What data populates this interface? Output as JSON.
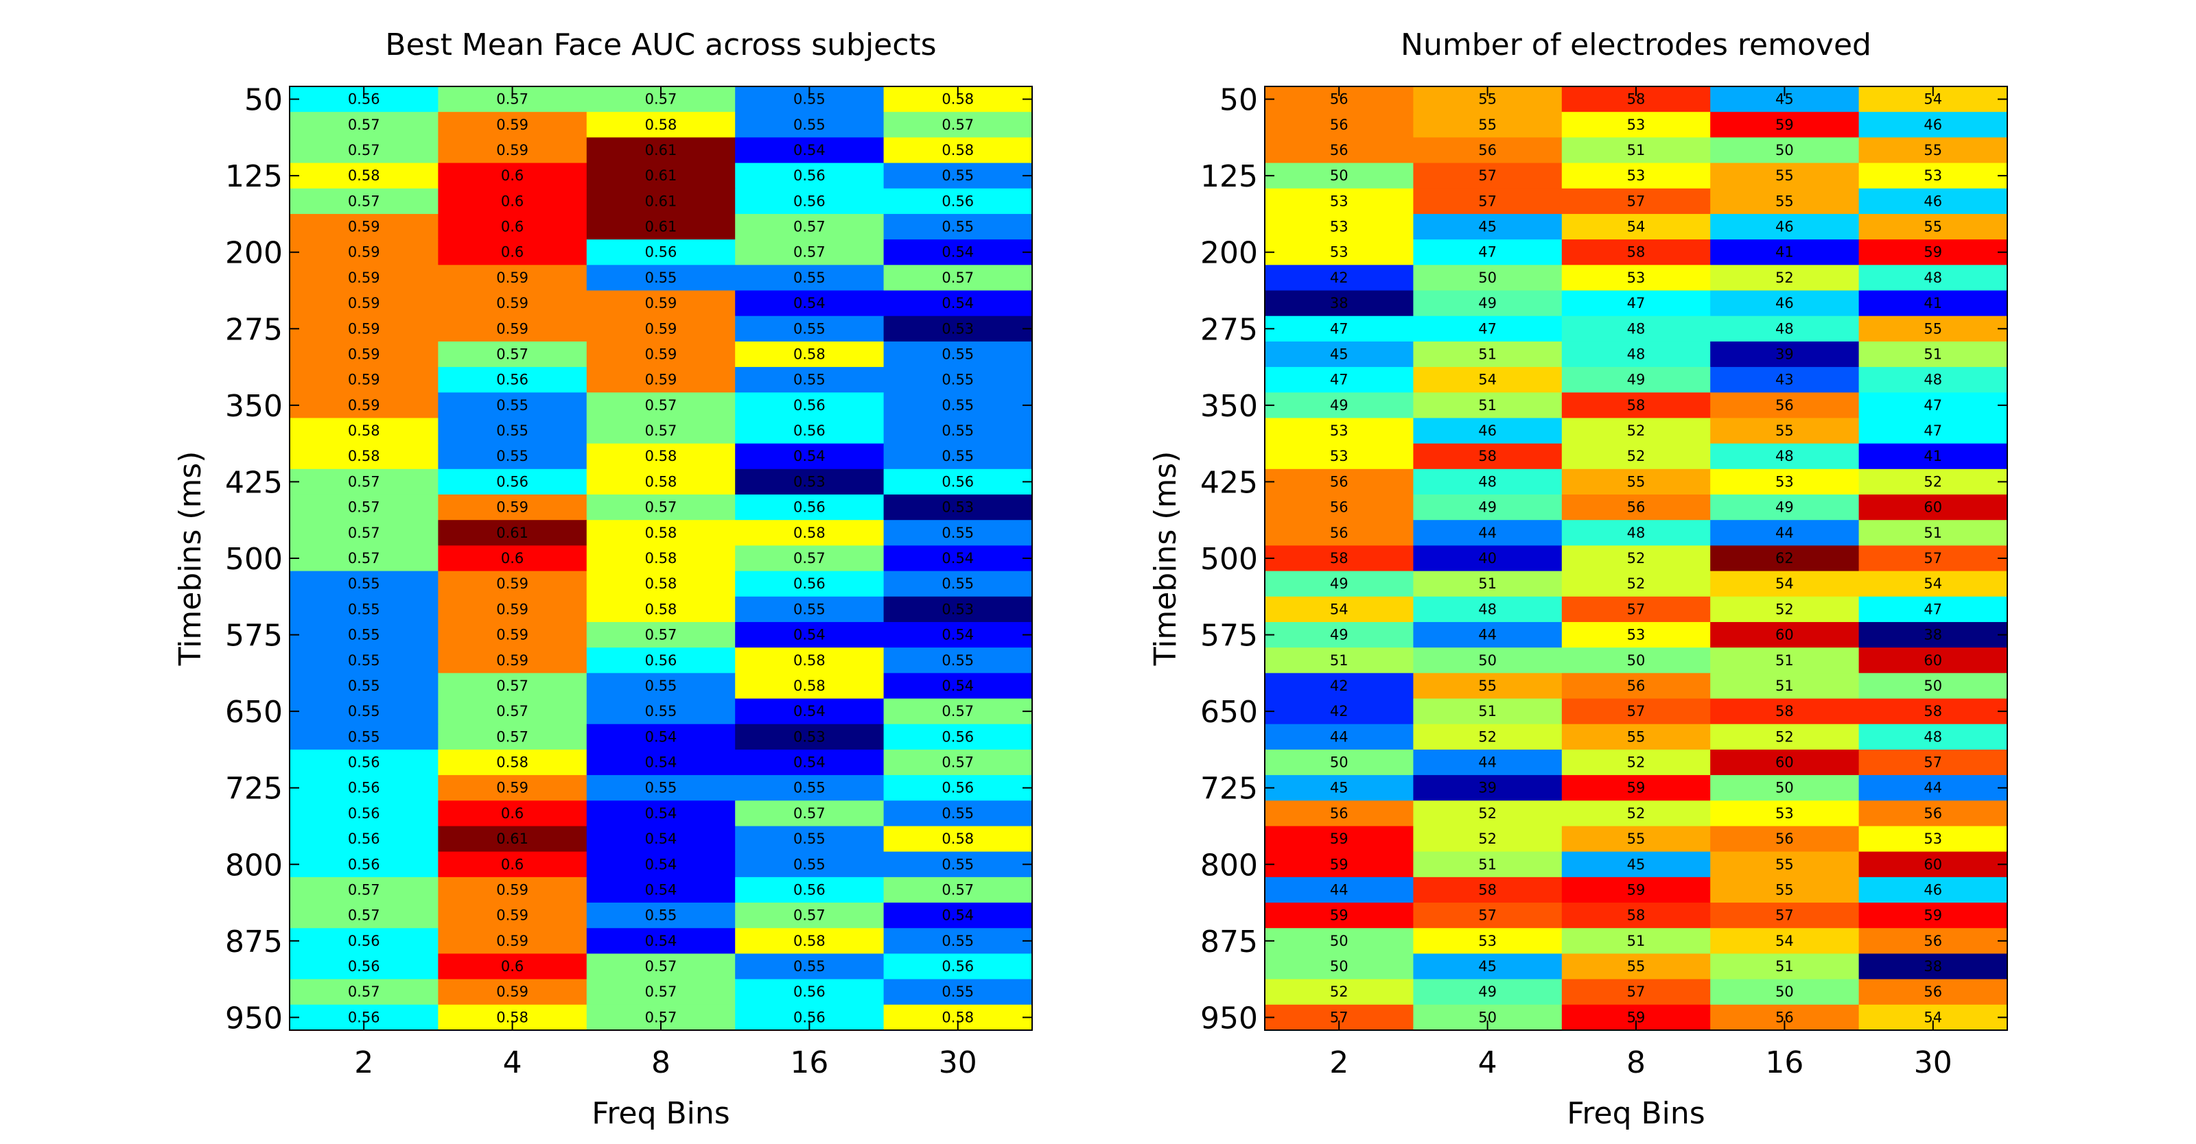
{
  "chart_data": [
    {
      "type": "heatmap",
      "title": "Best Mean Face AUC across subjects",
      "xlabel": "Freq Bins",
      "ylabel": "Timebins (ms)",
      "x_categories": [
        "2",
        "4",
        "8",
        "16",
        "30"
      ],
      "y_tick_labels": [
        "50",
        "125",
        "200",
        "275",
        "350",
        "425",
        "500",
        "575",
        "650",
        "725",
        "800",
        "875",
        "950"
      ],
      "colormap": "jet",
      "color_range": [
        0.53,
        0.61
      ],
      "values": [
        [
          0.56,
          0.57,
          0.57,
          0.55,
          0.58
        ],
        [
          0.57,
          0.59,
          0.58,
          0.55,
          0.57
        ],
        [
          0.57,
          0.59,
          0.61,
          0.54,
          0.58
        ],
        [
          0.58,
          0.6,
          0.61,
          0.56,
          0.55
        ],
        [
          0.57,
          0.6,
          0.61,
          0.56,
          0.56
        ],
        [
          0.59,
          0.6,
          0.61,
          0.57,
          0.55
        ],
        [
          0.59,
          0.6,
          0.56,
          0.57,
          0.54
        ],
        [
          0.59,
          0.59,
          0.55,
          0.55,
          0.57
        ],
        [
          0.59,
          0.59,
          0.59,
          0.54,
          0.54
        ],
        [
          0.59,
          0.59,
          0.59,
          0.55,
          0.53
        ],
        [
          0.59,
          0.57,
          0.59,
          0.58,
          0.55
        ],
        [
          0.59,
          0.56,
          0.59,
          0.55,
          0.55
        ],
        [
          0.59,
          0.55,
          0.57,
          0.56,
          0.55
        ],
        [
          0.58,
          0.55,
          0.57,
          0.56,
          0.55
        ],
        [
          0.58,
          0.55,
          0.58,
          0.54,
          0.55
        ],
        [
          0.57,
          0.56,
          0.58,
          0.53,
          0.56
        ],
        [
          0.57,
          0.59,
          0.57,
          0.56,
          0.53
        ],
        [
          0.57,
          0.61,
          0.58,
          0.58,
          0.55
        ],
        [
          0.57,
          0.6,
          0.58,
          0.57,
          0.54
        ],
        [
          0.55,
          0.59,
          0.58,
          0.56,
          0.55
        ],
        [
          0.55,
          0.59,
          0.58,
          0.55,
          0.53
        ],
        [
          0.55,
          0.59,
          0.57,
          0.54,
          0.54
        ],
        [
          0.55,
          0.59,
          0.56,
          0.58,
          0.55
        ],
        [
          0.55,
          0.57,
          0.55,
          0.58,
          0.54
        ],
        [
          0.55,
          0.57,
          0.55,
          0.54,
          0.57
        ],
        [
          0.55,
          0.57,
          0.54,
          0.53,
          0.56
        ],
        [
          0.56,
          0.58,
          0.54,
          0.54,
          0.57
        ],
        [
          0.56,
          0.59,
          0.55,
          0.55,
          0.56
        ],
        [
          0.56,
          0.6,
          0.54,
          0.57,
          0.55
        ],
        [
          0.56,
          0.61,
          0.54,
          0.55,
          0.58
        ],
        [
          0.56,
          0.6,
          0.54,
          0.55,
          0.55
        ],
        [
          0.57,
          0.59,
          0.54,
          0.56,
          0.57
        ],
        [
          0.57,
          0.59,
          0.55,
          0.57,
          0.54
        ],
        [
          0.56,
          0.59,
          0.54,
          0.58,
          0.55
        ],
        [
          0.56,
          0.6,
          0.57,
          0.55,
          0.56
        ],
        [
          0.57,
          0.59,
          0.57,
          0.56,
          0.55
        ],
        [
          0.56,
          0.58,
          0.57,
          0.56,
          0.58
        ]
      ]
    },
    {
      "type": "heatmap",
      "title": "Number of electrodes removed",
      "xlabel": "Freq Bins",
      "ylabel": "Timebins (ms)",
      "x_categories": [
        "2",
        "4",
        "8",
        "16",
        "30"
      ],
      "y_tick_labels": [
        "50",
        "125",
        "200",
        "275",
        "350",
        "425",
        "500",
        "575",
        "650",
        "725",
        "800",
        "875",
        "950"
      ],
      "colormap": "jet",
      "color_range": [
        38,
        62
      ],
      "values": [
        [
          56,
          55,
          58,
          45,
          54
        ],
        [
          56,
          55,
          53,
          59,
          46
        ],
        [
          56,
          56,
          51,
          50,
          55
        ],
        [
          50,
          57,
          53,
          55,
          53
        ],
        [
          53,
          57,
          57,
          55,
          46
        ],
        [
          53,
          45,
          54,
          46,
          55
        ],
        [
          53,
          47,
          58,
          41,
          59
        ],
        [
          42,
          50,
          53,
          52,
          48
        ],
        [
          38,
          49,
          47,
          46,
          41
        ],
        [
          47,
          47,
          48,
          48,
          55
        ],
        [
          45,
          51,
          48,
          39,
          51
        ],
        [
          47,
          54,
          49,
          43,
          48
        ],
        [
          49,
          51,
          58,
          56,
          47
        ],
        [
          53,
          46,
          52,
          55,
          47
        ],
        [
          53,
          58,
          52,
          48,
          41
        ],
        [
          56,
          48,
          55,
          53,
          52
        ],
        [
          56,
          49,
          56,
          49,
          60
        ],
        [
          56,
          44,
          48,
          44,
          51
        ],
        [
          58,
          40,
          52,
          62,
          57
        ],
        [
          49,
          51,
          52,
          54,
          54
        ],
        [
          54,
          48,
          57,
          52,
          47
        ],
        [
          49,
          44,
          53,
          60,
          38
        ],
        [
          51,
          50,
          50,
          51,
          60
        ],
        [
          42,
          55,
          56,
          51,
          50
        ],
        [
          42,
          51,
          57,
          58,
          58
        ],
        [
          44,
          52,
          55,
          52,
          48
        ],
        [
          50,
          44,
          52,
          60,
          57
        ],
        [
          45,
          39,
          59,
          50,
          44
        ],
        [
          56,
          52,
          52,
          53,
          56
        ],
        [
          59,
          52,
          55,
          56,
          53
        ],
        [
          59,
          51,
          45,
          55,
          60
        ],
        [
          44,
          58,
          59,
          55,
          46
        ],
        [
          59,
          57,
          58,
          57,
          59
        ],
        [
          50,
          53,
          51,
          54,
          56
        ],
        [
          50,
          45,
          55,
          51,
          38
        ],
        [
          52,
          49,
          57,
          50,
          56
        ],
        [
          57,
          50,
          59,
          56,
          54
        ]
      ]
    }
  ]
}
